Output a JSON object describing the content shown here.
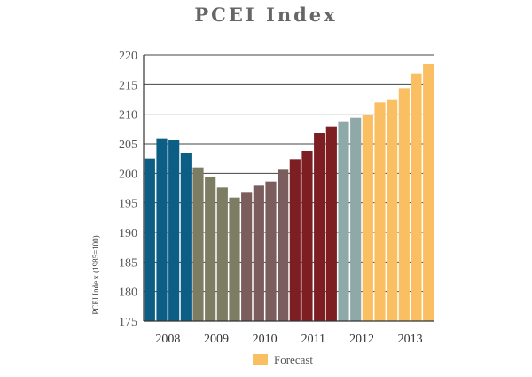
{
  "chart_data": {
    "type": "bar",
    "title": "PCEI Index",
    "ylabel": "PCEI Inde  x (1985=100)",
    "ylim": [
      175,
      220
    ],
    "yticks": [
      175,
      180,
      185,
      190,
      195,
      200,
      205,
      210,
      215,
      220
    ],
    "grid": true,
    "groups": [
      {
        "label": "2008",
        "color": "#0d5e85",
        "values": [
          202.5,
          205.8,
          205.6,
          203.5
        ]
      },
      {
        "label": "2009",
        "color": "#7d7d64",
        "values": [
          201.0,
          199.4,
          197.6,
          195.9
        ]
      },
      {
        "label": "2010",
        "color": "#7b5d5d",
        "values": [
          196.7,
          197.9,
          198.6,
          200.6
        ]
      },
      {
        "label": "2011",
        "color": "#7c1e22",
        "values": [
          202.4,
          203.8,
          206.8,
          207.9
        ]
      },
      {
        "label": "2012",
        "color": "#8fa9a9",
        "values": [
          208.8,
          209.4
        ]
      },
      {
        "label": "2012-forecast",
        "color": "#fbbf63",
        "forecast": true,
        "values": [
          209.8,
          212.0
        ]
      },
      {
        "label": "2013",
        "color": "#fbbf63",
        "forecast": true,
        "values": [
          212.4,
          214.4,
          216.9,
          218.5
        ]
      }
    ],
    "x_labels": [
      "2008",
      "2009",
      "2010",
      "2011",
      "2012",
      "2013"
    ],
    "legend": {
      "label": "Forecast",
      "color": "#fbbf63",
      "position": "bottom"
    }
  }
}
